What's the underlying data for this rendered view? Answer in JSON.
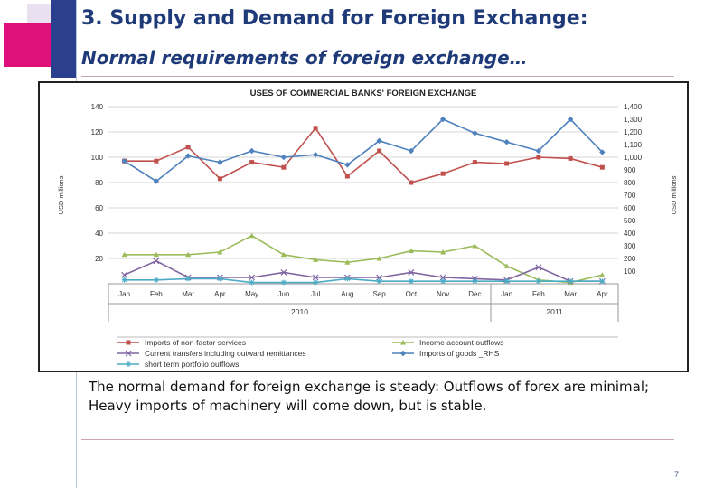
{
  "slide": {
    "title": "3. Supply and Demand for Foreign Exchange:",
    "subtitle": "Normal requirements of foreign exchange…",
    "body": "The normal demand for foreign exchange is steady:  Outflows of forex are minimal; Heavy imports of machinery will come down, but is stable.",
    "page_number": "7"
  },
  "colors": {
    "title": "#1f3a78",
    "deco_pink": "#e0107a",
    "deco_light": "#e9e0f0",
    "deco_blue": "#2b3f8f"
  },
  "chart_data": {
    "type": "line",
    "title": "USES OF COMMERCIAL BANKS' FOREIGN EXCHANGE",
    "ylabel": "USD millions",
    "ylabel_right": "USD millions",
    "ylim": [
      0,
      140
    ],
    "yticks": [
      20,
      40,
      60,
      80,
      100,
      120,
      140
    ],
    "ylim_right": [
      0,
      1400
    ],
    "yticks_right": [
      "100",
      "200",
      "300",
      "400",
      "500",
      "600",
      "700",
      "800",
      "900",
      "1,000",
      "1,100",
      "1,200",
      "1,300",
      "1,400"
    ],
    "categories": [
      "Jan",
      "Feb",
      "Mar",
      "Apr",
      "May",
      "Jun",
      "Jul",
      "Aug",
      "Sep",
      "Oct",
      "Nov",
      "Dec",
      "Jan",
      "Feb",
      "Mar",
      "Apr"
    ],
    "year_groups": [
      {
        "label": "2010",
        "start": 0,
        "end": 11
      },
      {
        "label": "2011",
        "start": 12,
        "end": 15
      }
    ],
    "grid": true,
    "legend_position": "bottom",
    "series": [
      {
        "name": "Imports of non-factor services",
        "color": "#c0504d",
        "marker": "square",
        "axis": "left",
        "values": [
          97,
          97,
          108,
          83,
          96,
          92,
          123,
          85,
          105,
          80,
          87,
          96,
          95,
          100,
          99,
          92
        ]
      },
      {
        "name": "Income account outflows",
        "color": "#9bbb59",
        "marker": "triangle",
        "axis": "left",
        "values": [
          23,
          23,
          23,
          25,
          38,
          23,
          19,
          17,
          20,
          26,
          25,
          30,
          14,
          3,
          1,
          7
        ]
      },
      {
        "name": "Current transfers including outward remittances",
        "color": "#8064a2",
        "marker": "x",
        "axis": "left",
        "values": [
          7,
          18,
          5,
          5,
          5,
          9,
          5,
          5,
          5,
          9,
          5,
          4,
          3,
          13,
          2,
          2
        ]
      },
      {
        "name": "Imports of goods _RHS",
        "color": "#4f81bd",
        "marker": "diamond",
        "axis": "right",
        "values": [
          970,
          810,
          1010,
          960,
          1050,
          1000,
          1020,
          940,
          1130,
          1050,
          1300,
          1190,
          1120,
          1050,
          1300,
          1040
        ]
      },
      {
        "name": "short term portfolio outflows",
        "color": "#4bacc6",
        "marker": "star",
        "axis": "left",
        "values": [
          3,
          3,
          4,
          4,
          1,
          1,
          1,
          4,
          2,
          2,
          2,
          2,
          2,
          2,
          2,
          2
        ]
      }
    ]
  }
}
